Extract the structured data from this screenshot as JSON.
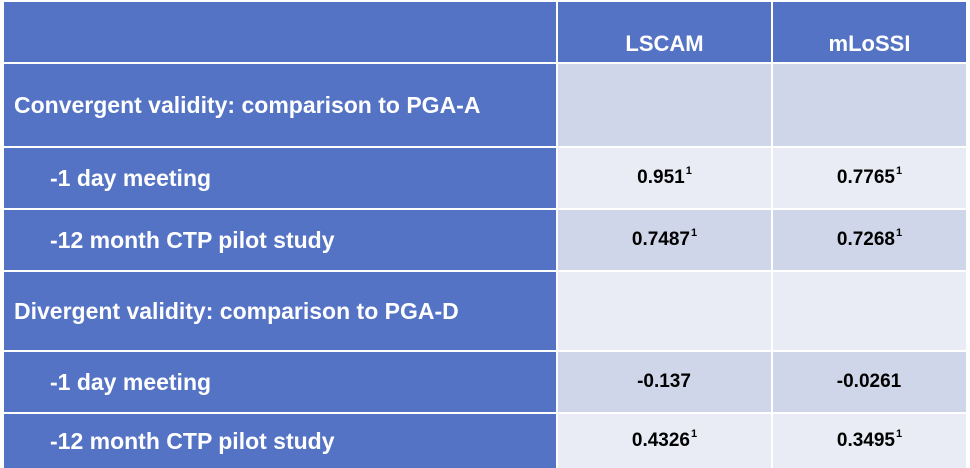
{
  "table": {
    "columns": [
      "",
      "LSCAM",
      "mLoSSI"
    ],
    "rows": [
      {
        "label": "Convergent validity: comparison to PGA-A",
        "type": "section",
        "lscam": "",
        "lscam_sup": "",
        "mlossi": "",
        "mlossi_sup": ""
      },
      {
        "label": "-1 day meeting",
        "type": "item",
        "lscam": "0.951",
        "lscam_sup": "1",
        "mlossi": "0.7765",
        "mlossi_sup": "1"
      },
      {
        "label": "-12 month CTP pilot study",
        "type": "item",
        "lscam": "0.7487",
        "lscam_sup": "1",
        "mlossi": "0.7268",
        "mlossi_sup": "1"
      },
      {
        "label": "Divergent validity: comparison to PGA-D",
        "type": "section",
        "lscam": "",
        "lscam_sup": "",
        "mlossi": "",
        "mlossi_sup": ""
      },
      {
        "label": "-1 day meeting",
        "type": "item",
        "lscam": "-0.137",
        "lscam_sup": "",
        "mlossi": "-0.0261",
        "mlossi_sup": ""
      },
      {
        "label": "-12 month CTP pilot study",
        "type": "item",
        "lscam": "0.4326",
        "lscam_sup": "1",
        "mlossi": "0.3495",
        "mlossi_sup": "1"
      }
    ]
  },
  "colors": {
    "header_blue": "#5473c4",
    "cell_light": "#d0d6e9",
    "cell_lighter": "#e9ecf5"
  }
}
